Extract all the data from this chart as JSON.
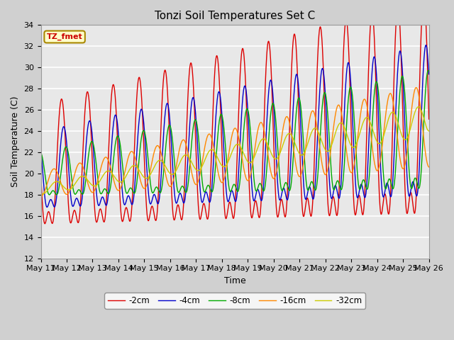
{
  "title": "Tonzi Soil Temperatures Set C",
  "xlabel": "Time",
  "ylabel": "Soil Temperature (C)",
  "ylim": [
    12,
    34
  ],
  "yticks": [
    12,
    14,
    16,
    18,
    20,
    22,
    24,
    26,
    28,
    30,
    32,
    34
  ],
  "xtick_labels": [
    "May 11",
    "May 12",
    "May 13",
    "May 14",
    "May 15",
    "May 16",
    "May 17",
    "May 18",
    "May 19",
    "May 20",
    "May 21",
    "May 22",
    "May 23",
    "May 24",
    "May 25",
    "May 26"
  ],
  "line_colors": [
    "#dd0000",
    "#0000cc",
    "#00aa00",
    "#ff8800",
    "#cccc00"
  ],
  "line_labels": [
    "-2cm",
    "-4cm",
    "-8cm",
    "-16cm",
    "-32cm"
  ],
  "legend_label": "TZ_fmet",
  "title_fontsize": 11,
  "axis_fontsize": 9,
  "tick_fontsize": 8
}
